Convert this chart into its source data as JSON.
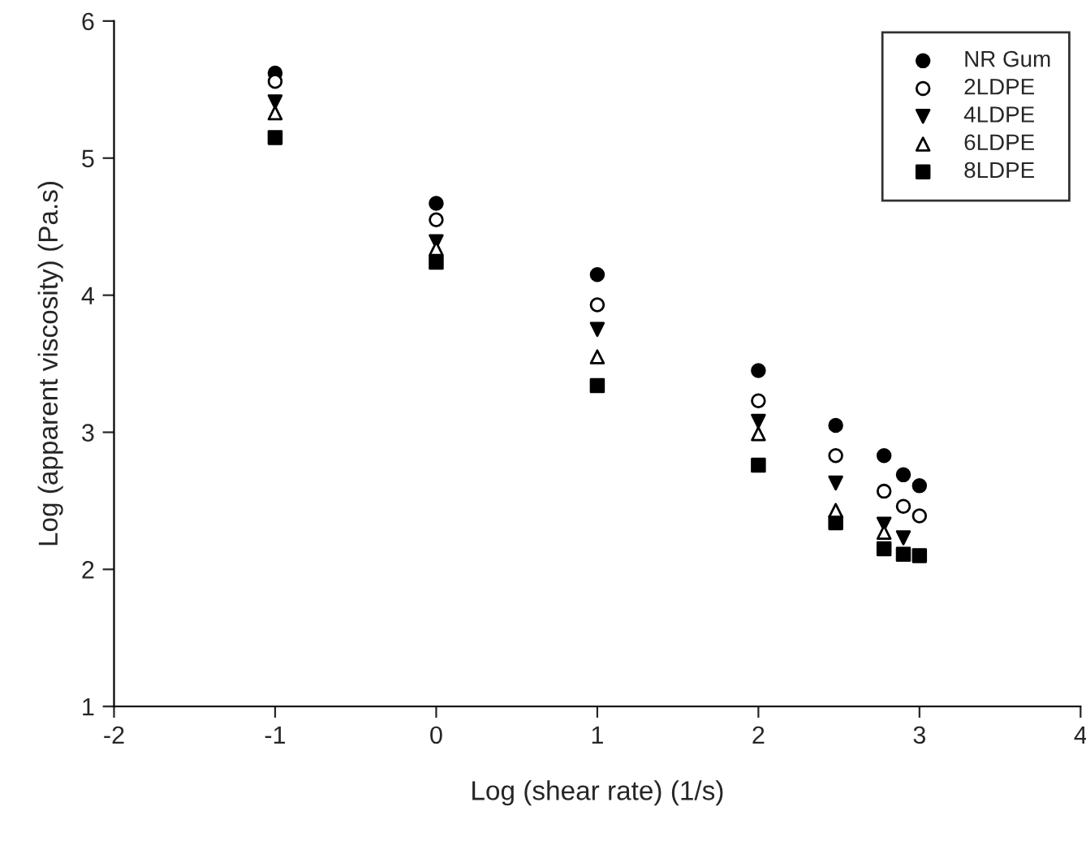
{
  "chart_data": {
    "type": "scatter",
    "xlabel": "Log (shear rate) (1/s)",
    "ylabel": "Log (apparent viscosity) (Pa.s)",
    "x": [
      -1,
      0,
      1,
      2,
      2.48,
      2.78,
      2.9,
      3.0
    ],
    "series": [
      {
        "name": "NR Gum",
        "color": "#000000",
        "marker": "circle",
        "values": [
          5.62,
          4.67,
          4.15,
          3.45,
          3.05,
          2.83,
          2.69,
          2.61
        ]
      },
      {
        "name": "2LDPE",
        "color": "#ffffff",
        "marker": "circle",
        "values": [
          5.56,
          4.55,
          3.93,
          3.23,
          2.83,
          2.57,
          2.46,
          2.39
        ]
      },
      {
        "name": "4LDPE",
        "color": "#000000",
        "marker": "triangle_down",
        "values": [
          5.41,
          4.39,
          3.75,
          3.08,
          2.63,
          2.33,
          2.23,
          null
        ]
      },
      {
        "name": "6LDPE",
        "color": "#ffffff",
        "marker": "triangle",
        "values": [
          5.33,
          4.34,
          3.55,
          2.99,
          2.43,
          2.27,
          null,
          null
        ]
      },
      {
        "name": "8LDPE",
        "color": "#000000",
        "marker": "square",
        "values": [
          5.15,
          4.24,
          3.34,
          2.76,
          2.34,
          2.15,
          2.11,
          2.1
        ]
      }
    ],
    "xlim": [
      -2,
      4
    ],
    "xticks": [
      -2,
      -1,
      0,
      1,
      2,
      3,
      4
    ],
    "ylim": [
      1,
      6
    ],
    "yticks": [
      1,
      2,
      3,
      4,
      5,
      6
    ],
    "grid": false,
    "legend": "top right"
  }
}
